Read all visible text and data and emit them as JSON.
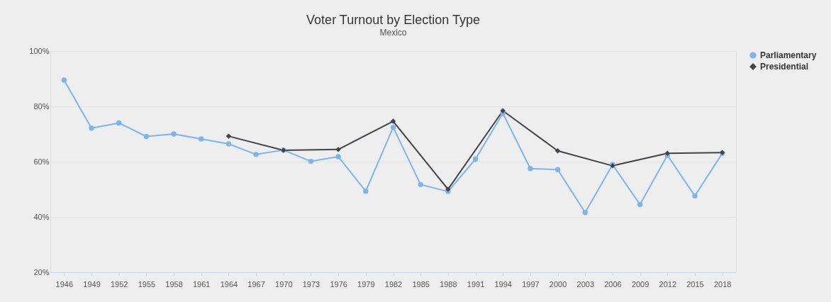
{
  "chart_data": {
    "type": "line",
    "title": "Voter Turnout by Election Type",
    "subtitle": "Mexico",
    "categories": [
      "1946",
      "1949",
      "1952",
      "1955",
      "1958",
      "1961",
      "1964",
      "1967",
      "1970",
      "1973",
      "1976",
      "1979",
      "1982",
      "1985",
      "1988",
      "1991",
      "1994",
      "1997",
      "2000",
      "2003",
      "2006",
      "2009",
      "2012",
      "2015",
      "2018"
    ],
    "series": [
      {
        "name": "Parliamentary",
        "color": "#7cb5ec",
        "marker": "circle",
        "values": [
          89.5,
          72.1,
          74.0,
          69.1,
          70.0,
          68.2,
          66.4,
          62.6,
          64.2,
          60.1,
          61.8,
          49.3,
          72.4,
          51.7,
          49.2,
          60.9,
          77.5,
          57.5,
          57.1,
          41.6,
          58.9,
          44.5,
          62.3,
          47.6,
          63.0
        ]
      },
      {
        "name": "Presidential",
        "color": "#434348",
        "marker": "diamond",
        "values": [
          null,
          null,
          null,
          null,
          null,
          null,
          69.2,
          null,
          64.1,
          null,
          64.4,
          null,
          74.6,
          null,
          50.0,
          null,
          78.4,
          null,
          63.9,
          null,
          58.5,
          null,
          63.0,
          null,
          63.3
        ]
      }
    ],
    "ylim": [
      20,
      100
    ],
    "yticks": [
      {
        "value": 20,
        "label": "20%"
      },
      {
        "value": 40,
        "label": "40%"
      },
      {
        "value": 60,
        "label": "60%"
      },
      {
        "value": 80,
        "label": "80%"
      },
      {
        "value": 100,
        "label": "100%"
      }
    ],
    "grid": "y",
    "legend": "right"
  }
}
